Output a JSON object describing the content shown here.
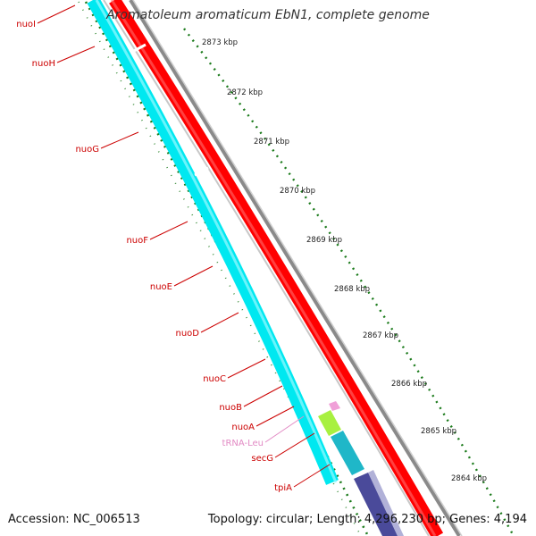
{
  "title": "Aromatoleum aromaticum EbN1, complete genome",
  "footer": {
    "accession": "Accession: NC_006513",
    "summary": "Topology: circular; Length: 4,296,230 bp; Genes: 4,194"
  },
  "colors": {
    "cds_forward": "#ff0000",
    "cds_reverse": "#00ffff",
    "trna": "#ee88cc",
    "backbone": "#8a8a8a",
    "gc_ticks": "#1a7a1a",
    "label_red": "#cc0000",
    "label_pink": "#e28ac4"
  },
  "kbp_ticks": [
    "2873 kbp",
    "2872 kbp",
    "2871 kbp",
    "2870 kbp",
    "2869 kbp",
    "2868 kbp",
    "2867 kbp",
    "2866 kbp",
    "2865 kbp",
    "2864 kbp"
  ],
  "genes": [
    {
      "name": "nuoI",
      "color": "#cc0000"
    },
    {
      "name": "nuoH",
      "color": "#cc0000"
    },
    {
      "name": "nuoG",
      "color": "#cc0000"
    },
    {
      "name": "nuoF",
      "color": "#cc0000"
    },
    {
      "name": "nuoE",
      "color": "#cc0000"
    },
    {
      "name": "nuoD",
      "color": "#cc0000"
    },
    {
      "name": "nuoC",
      "color": "#cc0000"
    },
    {
      "name": "nuoB",
      "color": "#cc0000"
    },
    {
      "name": "nuoA",
      "color": "#cc0000"
    },
    {
      "name": "tRNA-Leu",
      "color": "#e28ac4"
    },
    {
      "name": "secG",
      "color": "#cc0000"
    },
    {
      "name": "tpiA",
      "color": "#cc0000"
    }
  ]
}
